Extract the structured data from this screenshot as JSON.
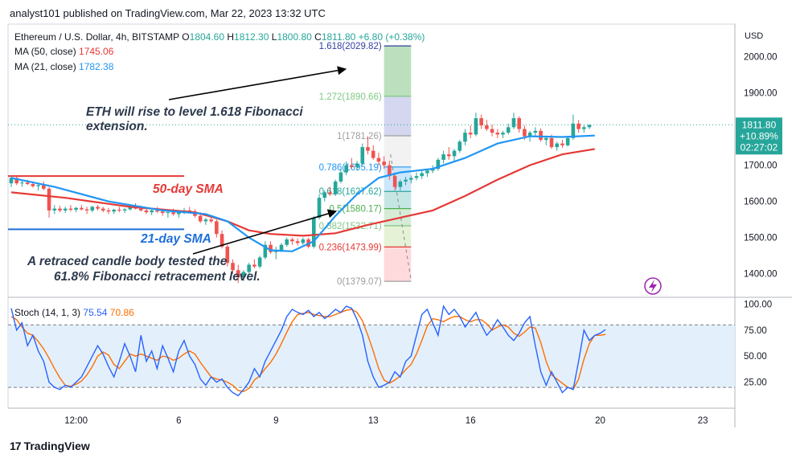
{
  "header": {
    "publisher_line": "analyst101 published on TradingView.com, Mar 22, 2023 13:32 UTC"
  },
  "brand": {
    "logo_mark": "17",
    "name": "TradingView"
  },
  "legend": {
    "symbol": "Ethereum / U.S. Dollar, 4h, BITSTAMP",
    "ohlc": {
      "o_label": "O",
      "o": "1804.60",
      "h_label": "H",
      "h": "1812.30",
      "l_label": "L",
      "l": "1800.80",
      "c_label": "C",
      "c": "1811.80",
      "change": "+6.80 (+0.38%)"
    },
    "ma50": {
      "label": "MA (50, close)",
      "value": "1745.06"
    },
    "ma21": {
      "label": "MA (21, close)",
      "value": "1782.38"
    }
  },
  "stoch_legend": {
    "label": "Stoch (14, 1, 3)",
    "k": "75.54",
    "d": "70.86"
  },
  "price_badge": {
    "price": "1811.80",
    "change": "+10.89%",
    "timer": "02:27:02"
  },
  "annotations": {
    "fib_ext": [
      "ETH will rise to level 1.618 Fibonacci",
      "extension."
    ],
    "sma50": "50-day SMA",
    "sma21": "21-day SMA",
    "retrace": [
      "A retraced candle body tested the",
      "61.8% Fibonacci retracement level."
    ]
  },
  "colors": {
    "up": "#26a69a",
    "down": "#ef5350",
    "ma50": "#e53935",
    "ma21": "#2196f3",
    "stoch_k": "#2962ff",
    "stoch_d": "#ff6d00",
    "stoch_band": "#e3f0fb",
    "annotation_text": "#2d3a4d",
    "annotation_red": "#e53935",
    "annotation_blue": "#1e6fd9",
    "lightning_badge": "#9c27b0"
  },
  "chart_data": {
    "type": "candlestick",
    "symbol": "ETHUSD",
    "timeframe": "4h",
    "currency": "USD",
    "y_ticks": [
      1400,
      1500,
      1600,
      1700,
      1800,
      1900,
      2000
    ],
    "y_tick_labels": [
      "1400.00",
      "1500.00",
      "1600.00",
      "1700.00",
      "1800.00",
      "1900.00",
      "2000.00"
    ],
    "ylim": [
      1335,
      2090
    ],
    "x_tick_labels": [
      "12:00",
      "6",
      "9",
      "13",
      "16",
      "20",
      "23"
    ],
    "x_tick_bars": [
      12,
      31,
      49,
      67,
      85,
      109,
      128
    ],
    "bars_visible": 115,
    "ohlc": [
      [
        1650,
        1670,
        1640,
        1665
      ],
      [
        1665,
        1668,
        1645,
        1650
      ],
      [
        1650,
        1658,
        1640,
        1652
      ],
      [
        1652,
        1660,
        1645,
        1648
      ],
      [
        1648,
        1655,
        1638,
        1642
      ],
      [
        1642,
        1650,
        1630,
        1645
      ],
      [
        1645,
        1655,
        1630,
        1635
      ],
      [
        1635,
        1640,
        1555,
        1575
      ],
      [
        1575,
        1590,
        1565,
        1580
      ],
      [
        1580,
        1588,
        1570,
        1575
      ],
      [
        1575,
        1585,
        1568,
        1580
      ],
      [
        1580,
        1590,
        1572,
        1577
      ],
      [
        1577,
        1585,
        1570,
        1582
      ],
      [
        1582,
        1590,
        1575,
        1578
      ],
      [
        1578,
        1585,
        1565,
        1575
      ],
      [
        1575,
        1588,
        1570,
        1585
      ],
      [
        1585,
        1590,
        1575,
        1580
      ],
      [
        1580,
        1585,
        1570,
        1575
      ],
      [
        1575,
        1582,
        1565,
        1572
      ],
      [
        1572,
        1580,
        1565,
        1577
      ],
      [
        1577,
        1585,
        1570,
        1575
      ],
      [
        1575,
        1582,
        1568,
        1578
      ],
      [
        1578,
        1590,
        1575,
        1585
      ],
      [
        1585,
        1595,
        1578,
        1580
      ],
      [
        1580,
        1588,
        1572,
        1575
      ],
      [
        1575,
        1582,
        1565,
        1570
      ],
      [
        1570,
        1580,
        1562,
        1575
      ],
      [
        1575,
        1585,
        1568,
        1572
      ],
      [
        1572,
        1578,
        1560,
        1568
      ],
      [
        1568,
        1575,
        1555,
        1570
      ],
      [
        1570,
        1580,
        1560,
        1565
      ],
      [
        1565,
        1575,
        1555,
        1570
      ],
      [
        1570,
        1582,
        1565,
        1575
      ],
      [
        1575,
        1585,
        1568,
        1572
      ],
      [
        1572,
        1578,
        1555,
        1560
      ],
      [
        1560,
        1570,
        1540,
        1545
      ],
      [
        1545,
        1555,
        1535,
        1550
      ],
      [
        1550,
        1560,
        1540,
        1545
      ],
      [
        1545,
        1550,
        1500,
        1510
      ],
      [
        1510,
        1520,
        1470,
        1475
      ],
      [
        1475,
        1480,
        1420,
        1430
      ],
      [
        1430,
        1440,
        1400,
        1410
      ],
      [
        1410,
        1425,
        1375,
        1390
      ],
      [
        1390,
        1410,
        1380,
        1405
      ],
      [
        1405,
        1430,
        1400,
        1425
      ],
      [
        1425,
        1440,
        1415,
        1420
      ],
      [
        1420,
        1450,
        1415,
        1445
      ],
      [
        1445,
        1490,
        1440,
        1480
      ],
      [
        1480,
        1490,
        1455,
        1460
      ],
      [
        1460,
        1475,
        1440,
        1465
      ],
      [
        1465,
        1485,
        1460,
        1480
      ],
      [
        1480,
        1500,
        1475,
        1495
      ],
      [
        1495,
        1500,
        1480,
        1490
      ],
      [
        1490,
        1498,
        1478,
        1485
      ],
      [
        1485,
        1500,
        1480,
        1495
      ],
      [
        1495,
        1500,
        1470,
        1475
      ],
      [
        1475,
        1560,
        1470,
        1555
      ],
      [
        1555,
        1620,
        1550,
        1610
      ],
      [
        1610,
        1630,
        1600,
        1625
      ],
      [
        1625,
        1640,
        1615,
        1620
      ],
      [
        1620,
        1660,
        1615,
        1655
      ],
      [
        1655,
        1690,
        1650,
        1680
      ],
      [
        1680,
        1710,
        1672,
        1700
      ],
      [
        1700,
        1720,
        1690,
        1695
      ],
      [
        1695,
        1712,
        1685,
        1705
      ],
      [
        1705,
        1760,
        1700,
        1750
      ],
      [
        1750,
        1780,
        1730,
        1740
      ],
      [
        1740,
        1755,
        1715,
        1720
      ],
      [
        1720,
        1735,
        1700,
        1710
      ],
      [
        1710,
        1725,
        1690,
        1700
      ],
      [
        1700,
        1712,
        1660,
        1670
      ],
      [
        1670,
        1680,
        1630,
        1640
      ],
      [
        1640,
        1660,
        1630,
        1655
      ],
      [
        1655,
        1668,
        1645,
        1660
      ],
      [
        1660,
        1672,
        1650,
        1665
      ],
      [
        1665,
        1680,
        1658,
        1670
      ],
      [
        1670,
        1685,
        1662,
        1678
      ],
      [
        1678,
        1690,
        1668,
        1685
      ],
      [
        1685,
        1700,
        1678,
        1690
      ],
      [
        1690,
        1720,
        1685,
        1715
      ],
      [
        1715,
        1740,
        1705,
        1730
      ],
      [
        1730,
        1750,
        1715,
        1725
      ],
      [
        1725,
        1745,
        1710,
        1740
      ],
      [
        1740,
        1770,
        1735,
        1765
      ],
      [
        1765,
        1800,
        1755,
        1790
      ],
      [
        1790,
        1810,
        1775,
        1785
      ],
      [
        1785,
        1845,
        1780,
        1830
      ],
      [
        1830,
        1840,
        1800,
        1810
      ],
      [
        1810,
        1825,
        1795,
        1800
      ],
      [
        1800,
        1812,
        1780,
        1790
      ],
      [
        1790,
        1800,
        1775,
        1785
      ],
      [
        1785,
        1795,
        1775,
        1790
      ],
      [
        1790,
        1815,
        1785,
        1805
      ],
      [
        1805,
        1845,
        1800,
        1830
      ],
      [
        1830,
        1835,
        1790,
        1800
      ],
      [
        1800,
        1810,
        1770,
        1780
      ],
      [
        1780,
        1795,
        1765,
        1790
      ],
      [
        1790,
        1805,
        1780,
        1795
      ],
      [
        1795,
        1802,
        1765,
        1770
      ],
      [
        1770,
        1782,
        1755,
        1775
      ],
      [
        1775,
        1785,
        1745,
        1750
      ],
      [
        1750,
        1765,
        1740,
        1760
      ],
      [
        1760,
        1770,
        1748,
        1755
      ],
      [
        1755,
        1780,
        1752,
        1775
      ],
      [
        1775,
        1840,
        1770,
        1815
      ],
      [
        1815,
        1825,
        1790,
        1800
      ],
      [
        1800,
        1810,
        1790,
        1805
      ],
      [
        1805,
        1812,
        1800,
        1811.8
      ]
    ],
    "ma21_points": [
      [
        0,
        1665
      ],
      [
        8,
        1640
      ],
      [
        18,
        1600
      ],
      [
        28,
        1575
      ],
      [
        36,
        1565
      ],
      [
        40,
        1545
      ],
      [
        44,
        1500
      ],
      [
        48,
        1465
      ],
      [
        52,
        1462
      ],
      [
        56,
        1490
      ],
      [
        60,
        1560
      ],
      [
        64,
        1620
      ],
      [
        68,
        1665
      ],
      [
        72,
        1680
      ],
      [
        78,
        1690
      ],
      [
        84,
        1720
      ],
      [
        90,
        1760
      ],
      [
        96,
        1780
      ],
      [
        102,
        1778
      ],
      [
        108,
        1782
      ]
    ],
    "ma50_points": [
      [
        0,
        1625
      ],
      [
        10,
        1610
      ],
      [
        22,
        1585
      ],
      [
        34,
        1570
      ],
      [
        40,
        1545
      ],
      [
        44,
        1520
      ],
      [
        48,
        1510
      ],
      [
        54,
        1505
      ],
      [
        60,
        1512
      ],
      [
        66,
        1535
      ],
      [
        72,
        1555
      ],
      [
        78,
        1575
      ],
      [
        84,
        1615
      ],
      [
        90,
        1660
      ],
      [
        96,
        1700
      ],
      [
        102,
        1730
      ],
      [
        108,
        1745
      ]
    ],
    "support_lines": [
      {
        "price": 1670,
        "from_bar": 0,
        "to_bar": 32,
        "color": "#e53935"
      },
      {
        "price": 1523,
        "from_bar": 0,
        "to_bar": 32,
        "color": "#1e6fd9"
      }
    ],
    "fibonacci": {
      "from_bar": 69,
      "to_bar": 74,
      "levels": [
        {
          "ratio": "1.618",
          "price": 2029.82,
          "color": "#303f9f",
          "fill": ""
        },
        {
          "ratio": "1.272",
          "price": 1890.66,
          "color": "#81c784",
          "fill": "#a5d6a7"
        },
        {
          "ratio": "1",
          "price": 1781.26,
          "color": "#9e9e9e",
          "fill": "#c5cae9"
        },
        {
          "ratio": "0.786",
          "price": 1695.19,
          "color": "#2196f3",
          "fill": "#eeeeee"
        },
        {
          "ratio": "0.618",
          "price": 1627.62,
          "color": "#26a69a",
          "fill": "#bbdefb"
        },
        {
          "ratio": "0.5",
          "price": 1580.17,
          "color": "#4caf50",
          "fill": "#b2dfdb"
        },
        {
          "ratio": "0.382",
          "price": 1532.71,
          "color": "#81c784",
          "fill": "#c8e6c9"
        },
        {
          "ratio": "0.236",
          "price": 1473.99,
          "color": "#e53935",
          "fill": "#dcedc8"
        },
        {
          "ratio": "0",
          "price": 1379.07,
          "color": "#9e9e9e",
          "fill": "#ffcdd2"
        }
      ]
    },
    "stoch": {
      "ylim": [
        0,
        105
      ],
      "ticks": [
        25,
        50,
        75,
        100
      ],
      "tick_labels": [
        "25.00",
        "50.00",
        "75.00",
        "100.00"
      ],
      "band": [
        20,
        80
      ],
      "k": [
        96,
        75,
        82,
        60,
        70,
        55,
        45,
        25,
        20,
        18,
        22,
        20,
        25,
        30,
        40,
        50,
        60,
        52,
        40,
        30,
        45,
        62,
        50,
        35,
        70,
        45,
        55,
        38,
        60,
        48,
        35,
        55,
        65,
        50,
        42,
        28,
        22,
        30,
        25,
        28,
        20,
        15,
        12,
        18,
        25,
        38,
        30,
        45,
        55,
        65,
        75,
        88,
        95,
        92,
        90,
        94,
        88,
        92,
        86,
        90,
        95,
        92,
        98,
        96,
        85,
        70,
        45,
        30,
        20,
        22,
        25,
        35,
        30,
        45,
        50,
        70,
        90,
        95,
        82,
        70,
        98,
        90,
        95,
        88,
        78,
        85,
        92,
        80,
        70,
        76,
        85,
        78,
        70,
        65,
        72,
        82,
        88,
        60,
        35,
        22,
        35,
        25,
        15,
        20,
        18,
        45,
        75,
        65,
        70,
        72,
        75.54
      ],
      "d": [
        88,
        85,
        78,
        72,
        70,
        64,
        57,
        48,
        38,
        29,
        22,
        21,
        23,
        26,
        32,
        40,
        50,
        54,
        51,
        42,
        38,
        45,
        52,
        50,
        52,
        50,
        48,
        46,
        50,
        49,
        46,
        48,
        52,
        55,
        52,
        44,
        37,
        30,
        28,
        27,
        25,
        22,
        17,
        16,
        19,
        27,
        31,
        38,
        44,
        52,
        62,
        73,
        83,
        90,
        91,
        92,
        90,
        89,
        88,
        88,
        90,
        92,
        94,
        95,
        92,
        84,
        70,
        55,
        38,
        27,
        24,
        27,
        31,
        37,
        42,
        52,
        65,
        79,
        86,
        85,
        83,
        86,
        88,
        88,
        85,
        83,
        85,
        85,
        81,
        75,
        78,
        80,
        78,
        72,
        69,
        73,
        78,
        77,
        63,
        45,
        32,
        28,
        24,
        20,
        18,
        28,
        47,
        62,
        70,
        70,
        70.86
      ]
    }
  }
}
